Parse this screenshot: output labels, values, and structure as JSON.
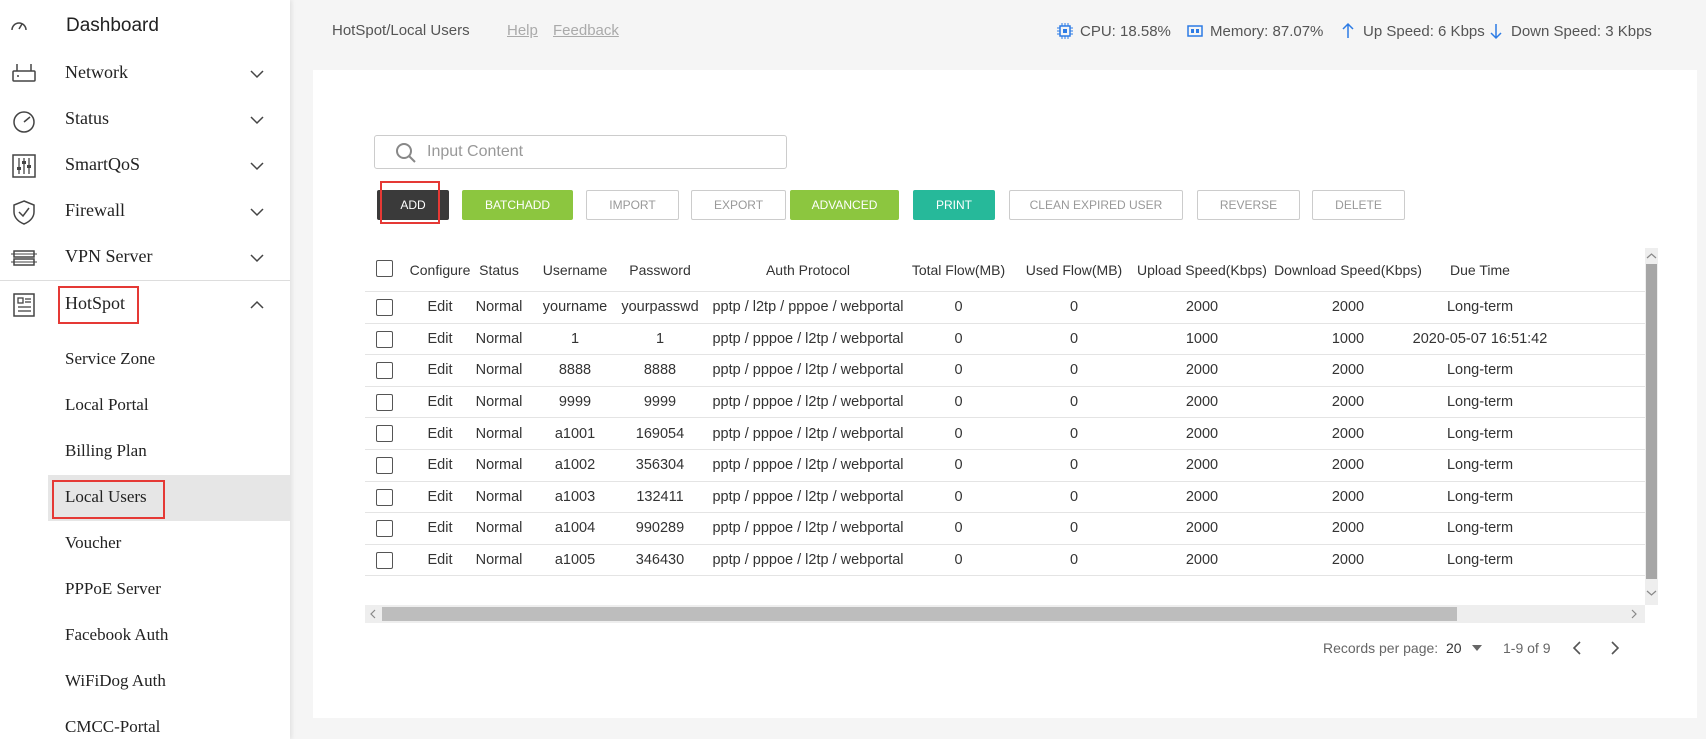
{
  "sidebar": {
    "dashboard": "Dashboard",
    "items": [
      {
        "label": "Network",
        "icon": "router-icon"
      },
      {
        "label": "Status",
        "icon": "gauge-icon"
      },
      {
        "label": "SmartQoS",
        "icon": "sliders-icon"
      },
      {
        "label": "Firewall",
        "icon": "shield-icon"
      },
      {
        "label": "VPN Server",
        "icon": "server-icon"
      },
      {
        "label": "HotSpot",
        "icon": "hotspot-icon"
      }
    ],
    "sub_items": [
      "Service Zone",
      "Local Portal",
      "Billing Plan",
      "Local Users",
      "Voucher",
      "PPPoE Server",
      "Facebook Auth",
      "WiFiDog Auth",
      "CMCC-Portal"
    ],
    "active_sub": "Local Users"
  },
  "header": {
    "breadcrumb": "HotSpot/Local Users",
    "help": "Help",
    "feedback": "Feedback",
    "cpu": "CPU: 18.58%",
    "memory": "Memory: 87.07%",
    "up": "Up Speed: 6 Kbps",
    "down": "Down Speed: 3 Kbps"
  },
  "search": {
    "placeholder": "Input Content"
  },
  "toolbar": {
    "add": "ADD",
    "batchadd": "BATCHADD",
    "import": "IMPORT",
    "export": "EXPORT",
    "advanced": "ADVANCED",
    "print": "PRINT",
    "clean": "CLEAN EXPIRED USER",
    "reverse": "REVERSE",
    "delete": "DELETE"
  },
  "table": {
    "columns": [
      "Configure",
      "Status",
      "Username",
      "Password",
      "Auth Protocol",
      "Total Flow(MB)",
      "Used Flow(MB)",
      "Upload Speed(Kbps)",
      "Download Speed(Kbps)",
      "Due Time"
    ],
    "rows": [
      [
        "Edit",
        "Normal",
        "yourname",
        "yourpasswd",
        "pptp / l2tp / pppoe / webportal",
        "0",
        "0",
        "2000",
        "2000",
        "Long-term"
      ],
      [
        "Edit",
        "Normal",
        "1",
        "1",
        "pptp / pppoe / l2tp / webportal",
        "0",
        "0",
        "1000",
        "1000",
        "2020-05-07 16:51:42"
      ],
      [
        "Edit",
        "Normal",
        "8888",
        "8888",
        "pptp / pppoe / l2tp / webportal",
        "0",
        "0",
        "2000",
        "2000",
        "Long-term"
      ],
      [
        "Edit",
        "Normal",
        "9999",
        "9999",
        "pptp / pppoe / l2tp / webportal",
        "0",
        "0",
        "2000",
        "2000",
        "Long-term"
      ],
      [
        "Edit",
        "Normal",
        "a1001",
        "169054",
        "pptp / pppoe / l2tp / webportal",
        "0",
        "0",
        "2000",
        "2000",
        "Long-term"
      ],
      [
        "Edit",
        "Normal",
        "a1002",
        "356304",
        "pptp / pppoe / l2tp / webportal",
        "0",
        "0",
        "2000",
        "2000",
        "Long-term"
      ],
      [
        "Edit",
        "Normal",
        "a1003",
        "132411",
        "pptp / pppoe / l2tp / webportal",
        "0",
        "0",
        "2000",
        "2000",
        "Long-term"
      ],
      [
        "Edit",
        "Normal",
        "a1004",
        "990289",
        "pptp / pppoe / l2tp / webportal",
        "0",
        "0",
        "2000",
        "2000",
        "Long-term"
      ],
      [
        "Edit",
        "Normal",
        "a1005",
        "346430",
        "pptp / pppoe / l2tp / webportal",
        "0",
        "0",
        "2000",
        "2000",
        "Long-term"
      ]
    ]
  },
  "pagination": {
    "records_label": "Records per page:",
    "per_page": "20",
    "range": "1-9 of 9"
  }
}
